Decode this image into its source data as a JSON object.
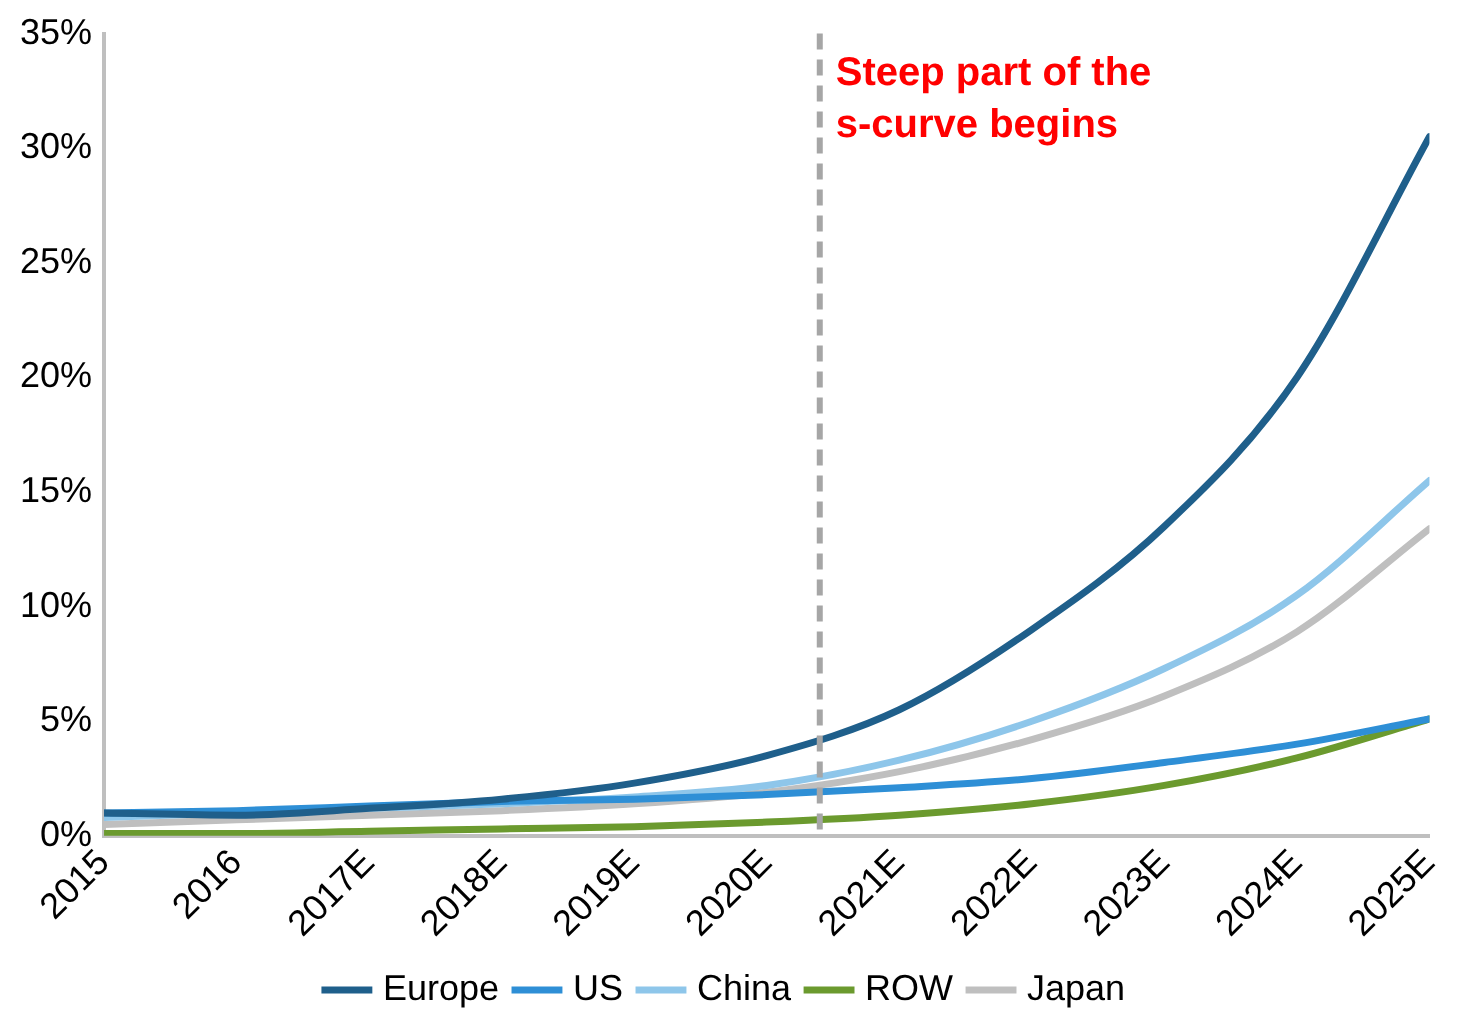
{
  "chart_data": {
    "type": "line",
    "x": [
      2015,
      2016,
      2017,
      2018,
      2019,
      2020,
      2021,
      2022,
      2023,
      2024,
      2025
    ],
    "xlim": [
      2015,
      2025
    ],
    "xticks": [
      {
        "value": 2015,
        "label": "2015"
      },
      {
        "value": 2016,
        "label": "2016"
      },
      {
        "value": 2017,
        "label": "2017E"
      },
      {
        "value": 2018,
        "label": "2018E"
      },
      {
        "value": 2019,
        "label": "2019E"
      },
      {
        "value": 2020,
        "label": "2020E"
      },
      {
        "value": 2021,
        "label": "2021E"
      },
      {
        "value": 2022,
        "label": "2022E"
      },
      {
        "value": 2023,
        "label": "2023E"
      },
      {
        "value": 2024,
        "label": "2024E"
      },
      {
        "value": 2025,
        "label": "2025E"
      }
    ],
    "ylim": [
      0,
      35
    ],
    "yticks": [
      {
        "value": 0,
        "label": "0%"
      },
      {
        "value": 5,
        "label": "5%"
      },
      {
        "value": 10,
        "label": "10%"
      },
      {
        "value": 15,
        "label": "15%"
      },
      {
        "value": 20,
        "label": "20%"
      },
      {
        "value": 25,
        "label": "25%"
      },
      {
        "value": 30,
        "label": "30%"
      },
      {
        "value": 35,
        "label": "35%"
      }
    ],
    "series": [
      {
        "name": "Europe",
        "color": "#1f5f8b",
        "values": [
          1.0,
          0.9,
          1.2,
          1.6,
          2.3,
          3.5,
          5.5,
          9.0,
          13.5,
          20.0,
          30.5
        ]
      },
      {
        "name": "US",
        "color": "#2e8fd6",
        "values": [
          1.0,
          1.1,
          1.3,
          1.5,
          1.6,
          1.8,
          2.1,
          2.5,
          3.2,
          4.0,
          5.1
        ]
      },
      {
        "name": "China",
        "color": "#8ec6ea",
        "values": [
          0.8,
          1.0,
          1.2,
          1.4,
          1.7,
          2.2,
          3.3,
          5.0,
          7.3,
          10.5,
          15.5
        ]
      },
      {
        "name": "ROW",
        "color": "#6b9a2e",
        "values": [
          0.1,
          0.1,
          0.2,
          0.3,
          0.4,
          0.6,
          0.9,
          1.4,
          2.2,
          3.4,
          5.1
        ]
      },
      {
        "name": "Japan",
        "color": "#bfbfbf",
        "values": [
          0.5,
          0.7,
          0.9,
          1.1,
          1.4,
          1.9,
          2.8,
          4.2,
          6.1,
          8.9,
          13.4
        ]
      }
    ],
    "ref_lines": [
      {
        "axis": "x",
        "value": 2020.4,
        "label": "Steep part of the s-curve begins",
        "color": "#a6a6a6",
        "line_style": "dashed"
      }
    ],
    "legend": "bottom",
    "grid": false,
    "marker": "none",
    "line_style": "solid"
  }
}
